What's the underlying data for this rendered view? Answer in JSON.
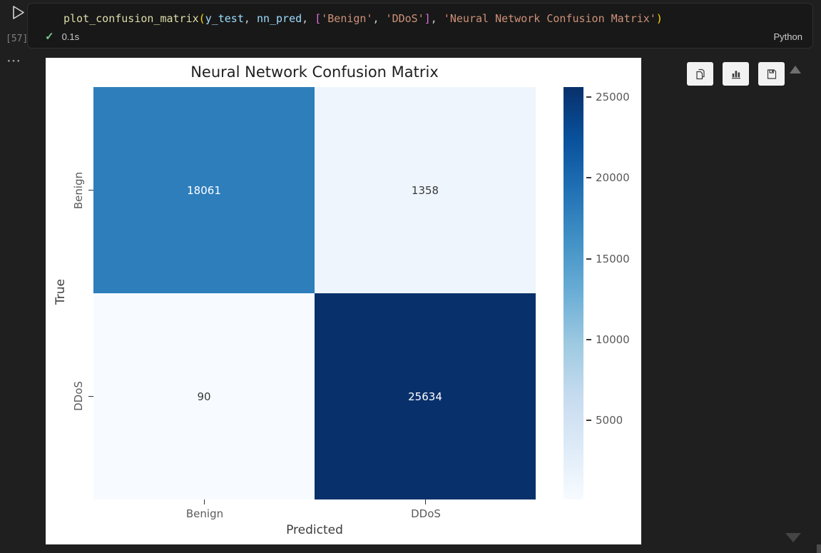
{
  "cell": {
    "execution_count": "[57]",
    "exec_time": "0.1s",
    "language_label": "Python",
    "more_indicator": "···",
    "success_color": "#73c991",
    "code_tokens": [
      {
        "t": "plot_confusion_matrix",
        "c": "#dcdcaa"
      },
      {
        "t": "(",
        "c": "#ffd700"
      },
      {
        "t": "y_test",
        "c": "#9cdcfe"
      },
      {
        "t": ", ",
        "c": "#cccccc"
      },
      {
        "t": "nn_pred",
        "c": "#9cdcfe"
      },
      {
        "t": ", ",
        "c": "#cccccc"
      },
      {
        "t": "[",
        "c": "#da70d6"
      },
      {
        "t": "'Benign'",
        "c": "#ce9178"
      },
      {
        "t": ", ",
        "c": "#cccccc"
      },
      {
        "t": "'DDoS'",
        "c": "#ce9178"
      },
      {
        "t": "]",
        "c": "#da70d6"
      },
      {
        "t": ", ",
        "c": "#cccccc"
      },
      {
        "t": "'Neural Network Confusion Matrix'",
        "c": "#ce9178"
      },
      {
        "t": ")",
        "c": "#ffd700"
      }
    ]
  },
  "output_toolbar": {
    "icons": [
      "copy-icon",
      "bar-chart-icon",
      "save-icon"
    ]
  },
  "chart_data": {
    "type": "heatmap",
    "title": "Neural Network Confusion Matrix",
    "xlabel": "Predicted",
    "ylabel": "True",
    "x_categories": [
      "Benign",
      "DDoS"
    ],
    "y_categories": [
      "Benign",
      "DDoS"
    ],
    "values": [
      [
        18061,
        1358
      ],
      [
        90,
        25634
      ]
    ],
    "vmin": 90,
    "vmax": 25634,
    "colormap": "Blues",
    "legend_position": "colorbar-right",
    "colorbar_ticks": [
      25000,
      20000,
      15000,
      10000,
      5000
    ],
    "colorbar_gradient": [
      "#08306b",
      "#08519c",
      "#2171b5",
      "#4292c6",
      "#6baed6",
      "#9ecae1",
      "#c6dbef",
      "#deebf7",
      "#f7fbff"
    ],
    "cell_colors": [
      [
        "#2e7ebc",
        "#eef5fc"
      ],
      [
        "#f7fbff",
        "#08306b"
      ]
    ],
    "cell_text_colors": [
      [
        "#ffffff",
        "#3a3a3a"
      ],
      [
        "#3a3a3a",
        "#ffffff"
      ]
    ]
  }
}
